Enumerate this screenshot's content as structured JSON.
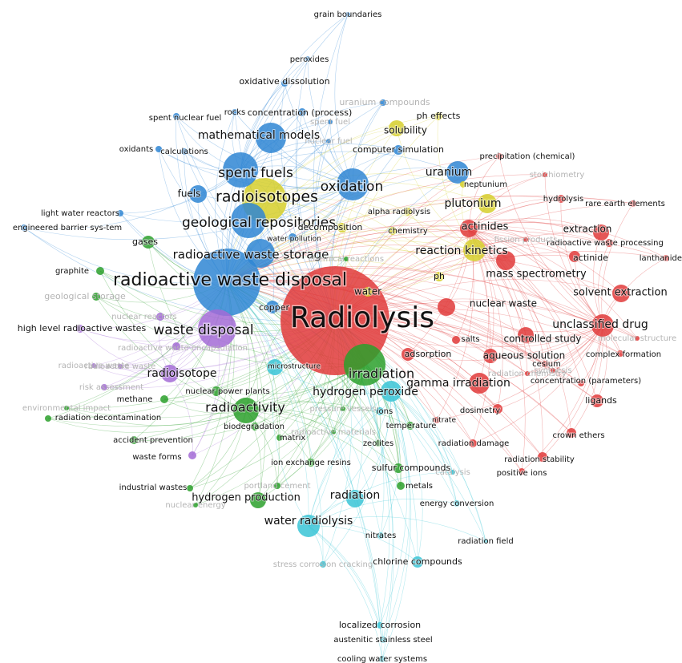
{
  "colors": {
    "red": "#e03a3a",
    "blue": "#2f86d4",
    "yellow": "#d6cf2c",
    "green": "#2ca02c",
    "purple": "#a36bd6",
    "cyan": "#38c4d6"
  },
  "nodes": [
    {
      "label": "Radiolysis",
      "cluster": "red",
      "weight": 10
    },
    {
      "label": "radioactive waste disposal",
      "cluster": "blue",
      "weight": 9
    },
    {
      "label": "irradiation",
      "cluster": "green",
      "weight": 7
    },
    {
      "label": "waste disposal",
      "cluster": "purple",
      "weight": 6
    },
    {
      "label": "radioisotopes",
      "cluster": "yellow",
      "weight": 6
    },
    {
      "label": "geological repositories",
      "cluster": "blue",
      "weight": 6
    },
    {
      "label": "spent fuels",
      "cluster": "blue",
      "weight": 6
    },
    {
      "label": "radioactive waste storage",
      "cluster": "blue",
      "weight": 5
    },
    {
      "label": "mathematical models",
      "cluster": "blue",
      "weight": 5
    },
    {
      "label": "oxidation",
      "cluster": "blue",
      "weight": 5
    },
    {
      "label": "uranium",
      "cluster": "blue",
      "weight": 4
    },
    {
      "label": "plutonium",
      "cluster": "yellow",
      "weight": 4
    },
    {
      "label": "actinides",
      "cluster": "red",
      "weight": 4
    },
    {
      "label": "reaction kinetics",
      "cluster": "yellow",
      "weight": 5
    },
    {
      "label": "gamma irradiation",
      "cluster": "red",
      "weight": 5
    },
    {
      "label": "unclassified drug",
      "cluster": "red",
      "weight": 5
    },
    {
      "label": "radioactivity",
      "cluster": "green",
      "weight": 5
    },
    {
      "label": "hydrogen peroxide",
      "cluster": "cyan",
      "weight": 5
    },
    {
      "label": "water radiolysis",
      "cluster": "cyan",
      "weight": 4
    },
    {
      "label": "radiation",
      "cluster": "cyan",
      "weight": 4
    },
    {
      "label": "radioisotope",
      "cluster": "purple",
      "weight": 4
    },
    {
      "label": "hydrogen production",
      "cluster": "green",
      "weight": 3
    },
    {
      "label": "solvent extraction",
      "cluster": "red",
      "weight": 3
    },
    {
      "label": "mass spectrometry",
      "cluster": "red",
      "weight": 3
    },
    {
      "label": "extraction",
      "cluster": "red",
      "weight": 3
    },
    {
      "label": "nuclear waste",
      "cluster": "red",
      "weight": 3
    },
    {
      "label": "controlled study",
      "cluster": "red",
      "weight": 3
    },
    {
      "label": "aqueous solution",
      "cluster": "red",
      "weight": 3
    },
    {
      "label": "solubility",
      "cluster": "yellow",
      "weight": 3
    },
    {
      "label": "fuels",
      "cluster": "blue",
      "weight": 3
    },
    {
      "label": "gases",
      "cluster": "green",
      "weight": 2
    },
    {
      "label": "computer simulation",
      "cluster": "blue",
      "weight": 2
    },
    {
      "label": "chlorine compounds",
      "cluster": "cyan",
      "weight": 2
    },
    {
      "label": "adsorption",
      "cluster": "red",
      "weight": 2
    },
    {
      "label": "ligands",
      "cluster": "red",
      "weight": 2
    },
    {
      "label": "copper",
      "cluster": "blue",
      "weight": 2
    },
    {
      "label": "ph",
      "cluster": "yellow",
      "weight": 2
    },
    {
      "label": "concentration (process)",
      "cluster": "blue",
      "weight": 2
    },
    {
      "label": "actinide",
      "cluster": "red",
      "weight": 2
    },
    {
      "label": "dosimetry",
      "cluster": "red",
      "weight": 2
    },
    {
      "label": "crown ethers",
      "cluster": "red",
      "weight": 2
    },
    {
      "label": "radiation stability",
      "cluster": "red",
      "weight": 2
    },
    {
      "label": "radiation damage",
      "cluster": "red",
      "weight": 2
    },
    {
      "label": "hydrolysis",
      "cluster": "red",
      "weight": 2
    },
    {
      "label": "radioactive waste processing",
      "cluster": "red",
      "weight": 2
    },
    {
      "label": "lanthanides",
      "cluster": "red",
      "weight": 2
    },
    {
      "label": "precipitation (chemical)",
      "cluster": "red",
      "weight": 2
    },
    {
      "label": "ph effects",
      "cluster": "yellow",
      "weight": 2
    },
    {
      "label": "neptunium",
      "cluster": "yellow",
      "weight": 2
    },
    {
      "label": "ion exchange resins",
      "cluster": "green",
      "weight": 2
    },
    {
      "label": "nuclear power plants",
      "cluster": "green",
      "weight": 2
    },
    {
      "label": "biodegradation",
      "cluster": "green",
      "weight": 2
    },
    {
      "label": "temperature",
      "cluster": "green",
      "weight": 2
    },
    {
      "label": "metals",
      "cluster": "green",
      "weight": 2
    },
    {
      "label": "sulfur compounds",
      "cluster": "green",
      "weight": 2
    },
    {
      "label": "accident prevention",
      "cluster": "green",
      "weight": 2
    },
    {
      "label": "radiation decontamination",
      "cluster": "green",
      "weight": 2
    },
    {
      "label": "methane",
      "cluster": "green",
      "weight": 2
    },
    {
      "label": "high level radioactive wastes",
      "cluster": "purple",
      "weight": 2
    },
    {
      "label": "industrial wastes",
      "cluster": "green",
      "weight": 1
    },
    {
      "label": "waste forms",
      "cluster": "purple",
      "weight": 1
    },
    {
      "label": "microstructure",
      "cluster": "cyan",
      "weight": 2
    },
    {
      "label": "ions",
      "cluster": "cyan",
      "weight": 1
    },
    {
      "label": "salts",
      "cluster": "red",
      "weight": 1
    },
    {
      "label": "cesium",
      "cluster": "red",
      "weight": 1
    },
    {
      "label": "positive ions",
      "cluster": "red",
      "weight": 1
    },
    {
      "label": "concentration (parameters)",
      "cluster": "red",
      "weight": 1
    },
    {
      "label": "complex formation",
      "cluster": "red",
      "weight": 1
    },
    {
      "label": "rare earth elements",
      "cluster": "red",
      "weight": 1
    },
    {
      "label": "nitrate",
      "cluster": "red",
      "weight": 1
    },
    {
      "label": "alpha radiolysis",
      "cluster": "yellow",
      "weight": 1
    },
    {
      "label": "chemistry",
      "cluster": "yellow",
      "weight": 1
    },
    {
      "label": "decomposition",
      "cluster": "yellow",
      "weight": 1
    },
    {
      "label": "water pollution",
      "cluster": "blue",
      "weight": 1
    },
    {
      "label": "water",
      "cluster": "yellow",
      "weight": 1
    },
    {
      "label": "light water reactors",
      "cluster": "blue",
      "weight": 1
    },
    {
      "label": "engineered barrier sys-tem",
      "cluster": "blue",
      "weight": 1
    },
    {
      "label": "graphite",
      "cluster": "green",
      "weight": 1
    },
    {
      "label": "oxidants",
      "cluster": "blue",
      "weight": 1
    },
    {
      "label": "calculations",
      "cluster": "blue",
      "weight": 1
    },
    {
      "label": "spent nuclear fuel",
      "cluster": "blue",
      "weight": 1
    },
    {
      "label": "rocks",
      "cluster": "blue",
      "weight": 1
    },
    {
      "label": "oxidative dissolution",
      "cluster": "blue",
      "weight": 1
    },
    {
      "label": "peroxides",
      "cluster": "blue",
      "weight": 1
    },
    {
      "label": "grain boundaries",
      "cluster": "blue",
      "weight": 1
    },
    {
      "label": "uranium compounds",
      "cluster": "blue",
      "weight": 1
    },
    {
      "label": "nuclear reactors",
      "cluster": "purple",
      "weight": 1
    },
    {
      "label": "radioactive waste encapsulation",
      "cluster": "purple",
      "weight": 1
    },
    {
      "label": "risk assessment",
      "cluster": "purple",
      "weight": 1
    },
    {
      "label": "geological storage",
      "cluster": "green",
      "weight": 1
    },
    {
      "label": "matrix",
      "cluster": "green",
      "weight": 1
    },
    {
      "label": "zeolites",
      "cluster": "green",
      "weight": 1
    },
    {
      "label": "portland cement",
      "cluster": "green",
      "weight": 1
    },
    {
      "label": "energy conversion",
      "cluster": "cyan",
      "weight": 1
    },
    {
      "label": "nitrates",
      "cluster": "cyan",
      "weight": 1
    },
    {
      "label": "radiation field",
      "cluster": "cyan",
      "weight": 1
    },
    {
      "label": "stress corrosion cracking",
      "cluster": "cyan",
      "weight": 1
    },
    {
      "label": "localized corrosion",
      "cluster": "cyan",
      "weight": 1
    },
    {
      "label": "austenitic stainless steel",
      "cluster": "cyan",
      "weight": 1
    },
    {
      "label": "cooling water systems",
      "cluster": "cyan",
      "weight": 1
    },
    {
      "label": "molecular structure",
      "cluster": "red",
      "weight": 1
    },
    {
      "label": "stoichiometry",
      "cluster": "red",
      "weight": 1
    },
    {
      "label": "spent fuel",
      "cluster": "blue",
      "weight": 1
    },
    {
      "label": "synthesis",
      "cluster": "red",
      "weight": 1
    },
    {
      "label": "catalysis",
      "cluster": "cyan",
      "weight": 1
    },
    {
      "label": "radioactive waste",
      "cluster": "purple",
      "weight": 1
    },
    {
      "label": "radiation chemistry",
      "cluster": "red",
      "weight": 1
    },
    {
      "label": "nuclear fuel",
      "cluster": "blue",
      "weight": 1
    },
    {
      "label": "radioactive materials",
      "cluster": "green",
      "weight": 1
    },
    {
      "label": "pressure vessels",
      "cluster": "green",
      "weight": 1
    },
    {
      "label": "chemical reactions",
      "cluster": "green",
      "weight": 1
    },
    {
      "label": "environmental impact",
      "cluster": "green",
      "weight": 1
    },
    {
      "label": "nuclear energy",
      "cluster": "green",
      "weight": 1
    },
    {
      "label": "radioactive waste",
      "cluster": "purple",
      "weight": 1
    },
    {
      "label": "fission products",
      "cluster": "red",
      "weight": 1
    }
  ]
}
